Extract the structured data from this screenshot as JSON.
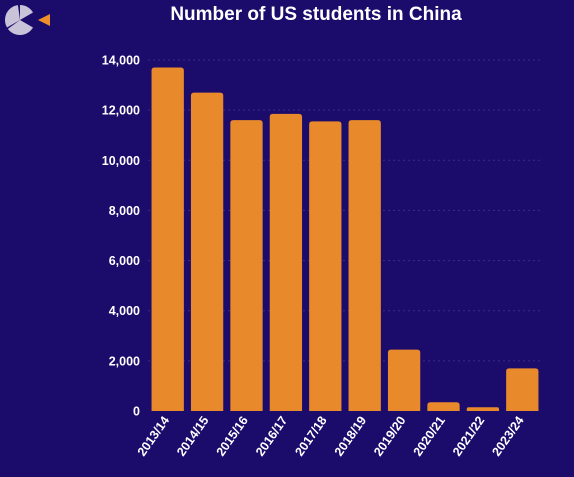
{
  "logo": {
    "icon": "pie-segment-logo-icon",
    "segment_color": "#c8c3d8",
    "accent_color": "#f0902a"
  },
  "chart_data": {
    "type": "bar",
    "title": "Number of US students in China",
    "xlabel": "",
    "ylabel": "",
    "categories": [
      "2013/14",
      "2014/15",
      "2015/16",
      "2016/17",
      "2017/18",
      "2018/19",
      "2019/20",
      "2020/21",
      "2021/22",
      "2023/24"
    ],
    "values": [
      13700,
      12700,
      11600,
      11850,
      11550,
      11600,
      2450,
      350,
      150,
      1700
    ],
    "ylim": [
      0,
      14000
    ],
    "yticks": [
      0,
      2000,
      4000,
      6000,
      8000,
      10000,
      12000,
      14000
    ],
    "ytick_labels": [
      "0",
      "2,000",
      "4,000",
      "6,000",
      "8,000",
      "10,000",
      "12,000",
      "14,000"
    ],
    "grid": true,
    "legend": "none",
    "bar_color": "#e8892c",
    "background_color": "#1b0b6b",
    "text_color": "#ffffff"
  }
}
